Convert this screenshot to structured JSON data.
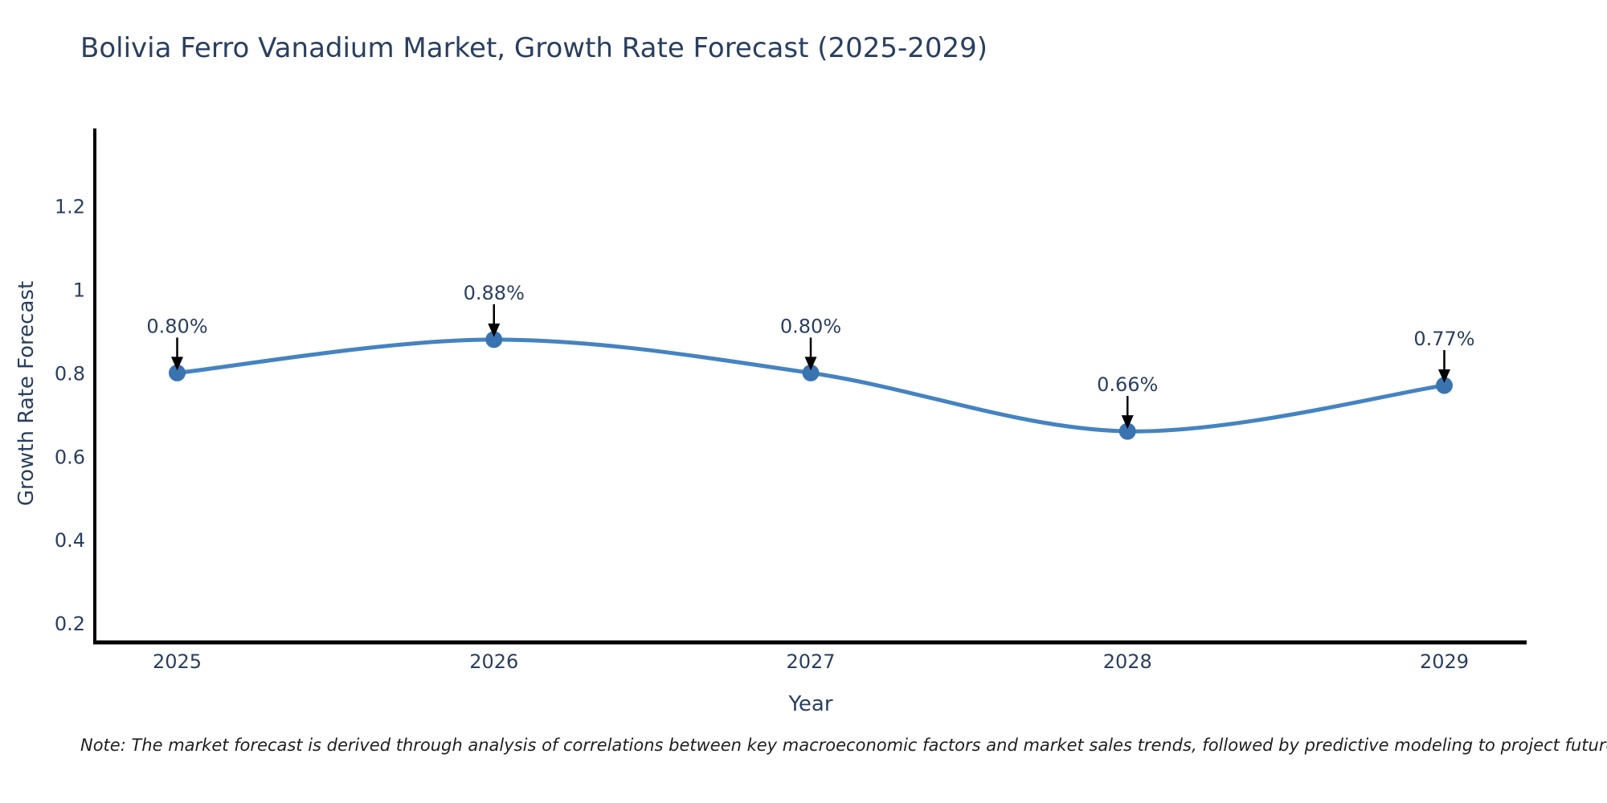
{
  "title": "Bolivia Ferro Vanadium Market, Growth Rate Forecast (2025-2029)",
  "note": "Note: The market forecast is derived through analysis of correlations between key macroeconomic factors and market sales trends, followed by predictive modeling to project future sales",
  "colors": {
    "title": "#2a3f5f",
    "tick_label": "#2a3f5f",
    "axis_line": "#000000",
    "line": "#4583c1",
    "marker": "#3a74b0",
    "annotation_text": "#2a3f5f",
    "annotation_arrow": "#000000",
    "note_text": "#1f1f1f",
    "background": "#ffffff"
  },
  "chart_data": {
    "type": "line",
    "title": "Bolivia Ferro Vanadium Market, Growth Rate Forecast (2025-2029)",
    "xlabel": "Year",
    "ylabel": "Growth Rate Forecast",
    "x": [
      2025,
      2026,
      2027,
      2028,
      2029
    ],
    "y": [
      0.8,
      0.88,
      0.8,
      0.66,
      0.77
    ],
    "point_labels": [
      "0.80%",
      "0.88%",
      "0.80%",
      "0.66%",
      "0.77%"
    ],
    "xtick_labels": [
      "2025",
      "2026",
      "2027",
      "2028",
      "2029"
    ],
    "ytick_values": [
      0.2,
      0.4,
      0.6,
      0.8,
      1,
      1.2
    ],
    "ytick_labels": [
      "0.2",
      "0.4",
      "0.6",
      "0.8",
      "1",
      "1.2"
    ],
    "xlim": [
      2024.74,
      2029.26
    ],
    "ylim": [
      0.154,
      1.386
    ],
    "grid": false,
    "legend": null,
    "curve": "spline",
    "markers": true,
    "annotations_with_arrows": true
  }
}
